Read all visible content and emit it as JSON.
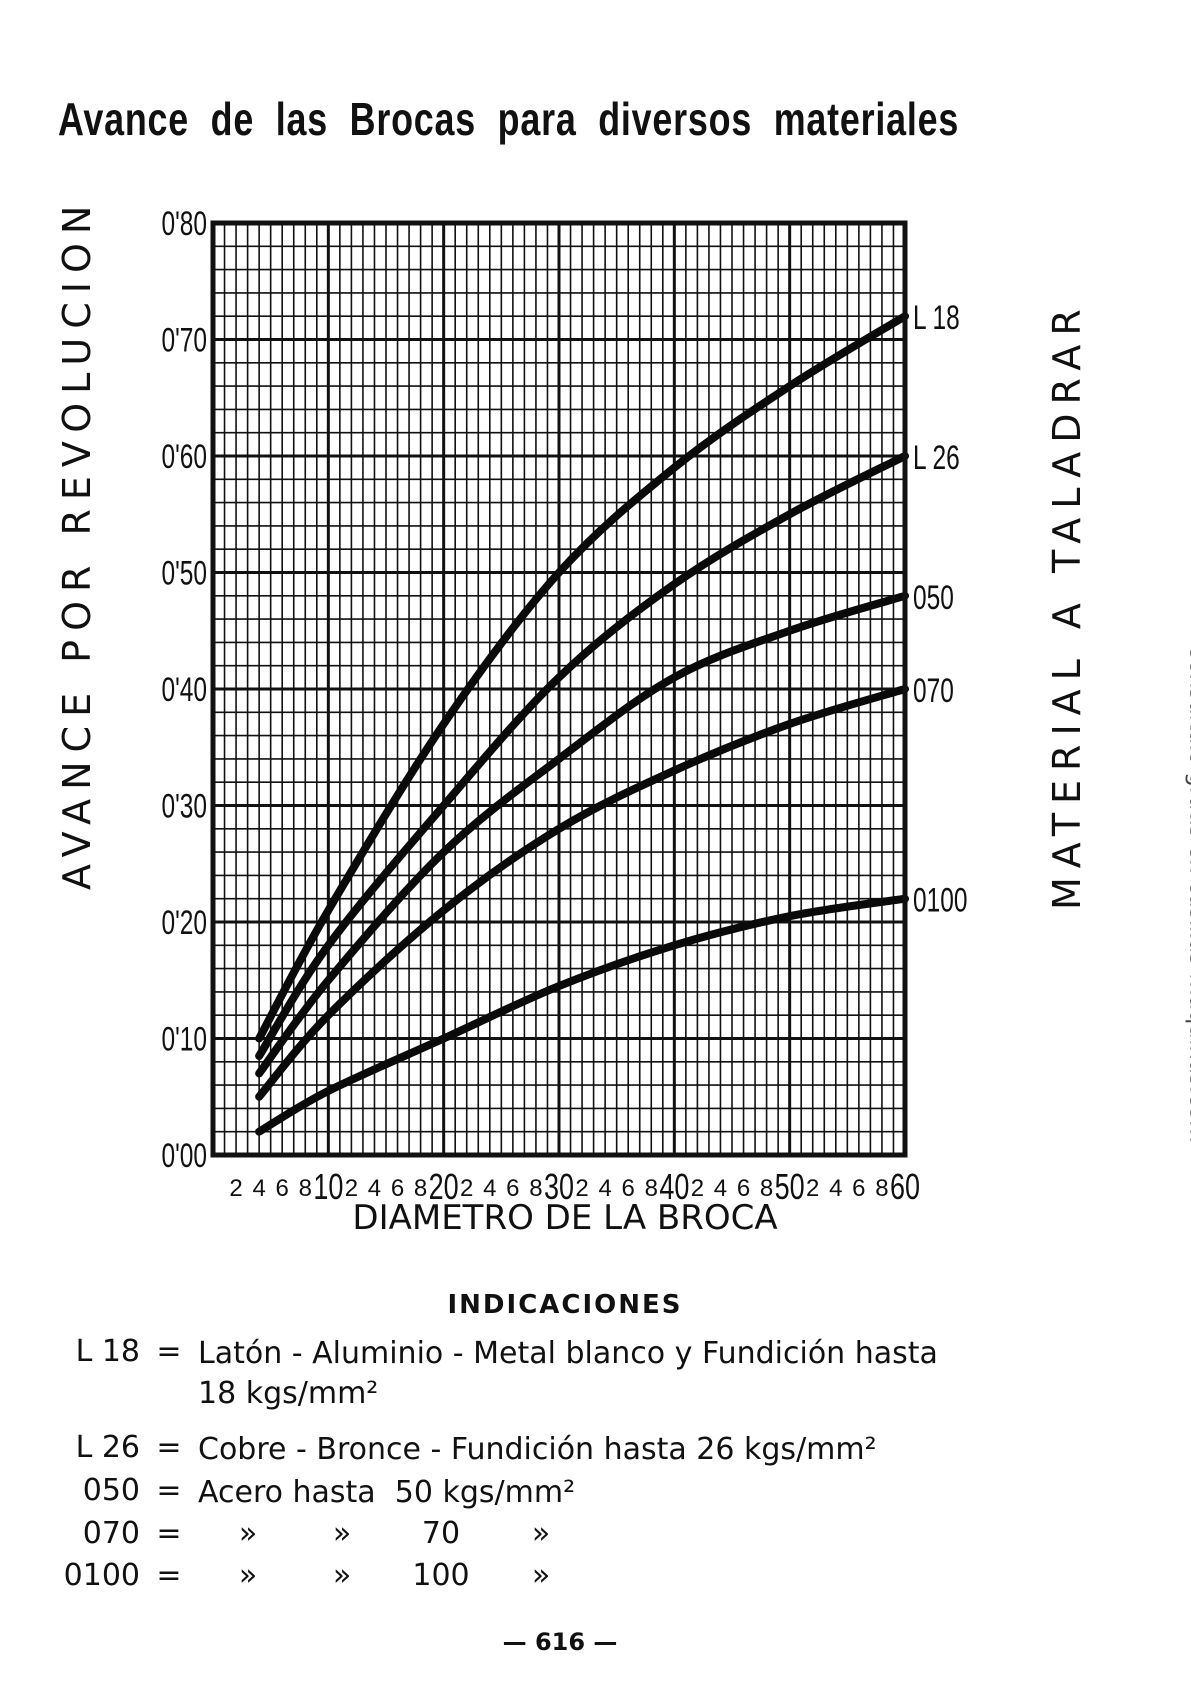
{
  "title": "Avance de las Brocas para diversos materiales",
  "watermark": "Consultalo gratis en casillas-maquinas.com",
  "page_number": "— 616 —",
  "chart_data": {
    "type": "line",
    "title": "Avance de las Brocas para diversos materiales",
    "xlabel": "DIAMETRO DE LA BROCA",
    "ylabel": "AVANCE POR REVOLUCION",
    "right_label": "MATERIAL A TALADRAR",
    "xlim": [
      0,
      60
    ],
    "ylim": [
      0,
      0.8
    ],
    "grid": true,
    "y_ticks": [
      "0'00",
      "0'10",
      "0'20",
      "0'30",
      "0'40",
      "0'50",
      "0'60",
      "0'70",
      "0'80"
    ],
    "x_minor_ticks": [
      "2",
      "4",
      "6",
      "8"
    ],
    "x_major_ticks": [
      "10",
      "20",
      "30",
      "40",
      "50",
      "60"
    ],
    "x": [
      4,
      10,
      20,
      30,
      40,
      50,
      60
    ],
    "series": [
      {
        "name": "L 18",
        "values": [
          0.1,
          0.21,
          0.37,
          0.5,
          0.59,
          0.66,
          0.72
        ]
      },
      {
        "name": "L 26",
        "values": [
          0.085,
          0.18,
          0.3,
          0.41,
          0.49,
          0.55,
          0.6
        ]
      },
      {
        "name": "050",
        "values": [
          0.07,
          0.15,
          0.26,
          0.34,
          0.41,
          0.45,
          0.48
        ]
      },
      {
        "name": "070",
        "values": [
          0.05,
          0.12,
          0.21,
          0.28,
          0.33,
          0.37,
          0.4
        ]
      },
      {
        "name": "0100",
        "values": [
          0.02,
          0.055,
          0.1,
          0.145,
          0.18,
          0.205,
          0.22
        ]
      }
    ],
    "series_end_labels": [
      "L 18",
      "L 26",
      "050",
      "070",
      "0100"
    ]
  },
  "notes": {
    "title": "INDICACIONES",
    "items": [
      {
        "code": "L 18",
        "eq": "=",
        "text": "Latón - Aluminio - Metal blanco y Fundición hasta",
        "text2": "18 kgs/mm²"
      },
      {
        "code": "L 26",
        "eq": "=",
        "text": "Cobre - Bronce - Fundición hasta 26 kgs/mm²"
      },
      {
        "code": "050",
        "eq": "=",
        "text": "Acero hasta  50 kgs/mm²"
      },
      {
        "code": "070",
        "eq": "=",
        "c1": "»",
        "c2": "»",
        "c3": "70",
        "c4": "»"
      },
      {
        "code": "0100",
        "eq": "=",
        "c1": "»",
        "c2": "»",
        "c3": "100",
        "c4": "»"
      }
    ]
  }
}
